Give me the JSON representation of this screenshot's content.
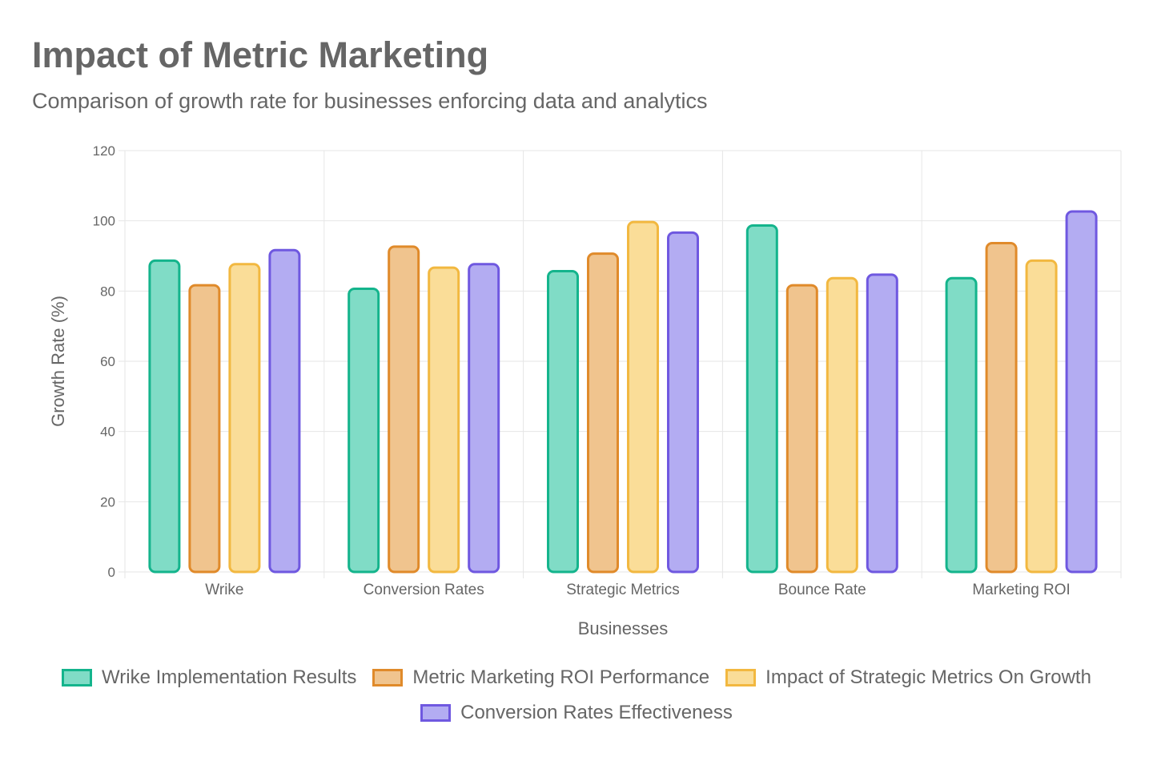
{
  "title": "Impact of Metric Marketing",
  "subtitle": "Comparison of growth rate for businesses enforcing data and analytics",
  "chart_data": {
    "type": "bar",
    "title": "Impact of Metric Marketing",
    "subtitle": "Comparison of growth rate for businesses enforcing data and analytics",
    "xlabel": "Businesses",
    "ylabel": "Growth Rate (%)",
    "ylim": [
      0,
      120
    ],
    "yticks": [
      0,
      20,
      40,
      60,
      80,
      100,
      120
    ],
    "grid": true,
    "legend_position": "bottom",
    "categories": [
      "Wrike",
      "Conversion Rates",
      "Strategic Metrics",
      "Bounce Rate",
      "Marketing ROI"
    ],
    "series": [
      {
        "name": "Wrike Implementation Results",
        "values": [
          89,
          81,
          86,
          99,
          84
        ],
        "border_color": "#14b48c",
        "fill_color": "#80dcc6"
      },
      {
        "name": "Metric Marketing ROI Performance",
        "values": [
          82,
          93,
          91,
          82,
          94
        ],
        "border_color": "#e08a2a",
        "fill_color": "#f0c48e"
      },
      {
        "name": "Impact of Strategic Metrics On Growth",
        "values": [
          88,
          87,
          100,
          84,
          89
        ],
        "border_color": "#f2b840",
        "fill_color": "#fadd98"
      },
      {
        "name": "Conversion Rates Effectiveness",
        "values": [
          92,
          88,
          97,
          85,
          103
        ],
        "border_color": "#6f58e0",
        "fill_color": "#b3acf2"
      }
    ]
  }
}
